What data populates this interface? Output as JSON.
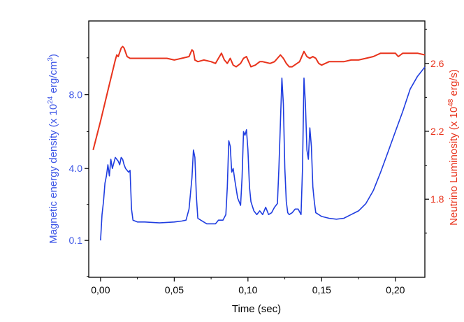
{
  "chart_data": {
    "type": "line",
    "xlabel": "Time (sec)",
    "ylabel_left": {
      "main": "Magnetic energy density (x 10",
      "exp": "24",
      "unit": " erg/cm",
      "unit_exp": "3",
      "close": ")"
    },
    "ylabel_right": {
      "main": "Neutrino Luminosity (x 10",
      "exp": "48",
      "unit": " erg/s)"
    },
    "x_ticks": [
      {
        "value": 0.0,
        "label": "0,00"
      },
      {
        "value": 0.05,
        "label": "0,05"
      },
      {
        "value": 0.1,
        "label": "0,10"
      },
      {
        "value": 0.15,
        "label": "0,15"
      },
      {
        "value": 0.2,
        "label": "0,20"
      }
    ],
    "xlim": [
      -0.008,
      0.22
    ],
    "left_ticks": [
      {
        "value": 0.1,
        "label": "0.1"
      },
      {
        "value": 4.0,
        "label": "4.0"
      },
      {
        "value": 8.0,
        "label": "8.0"
      }
    ],
    "left_ylim": [
      -1.9,
      12.0
    ],
    "right_ticks": [
      {
        "value": 1.8,
        "label": "1.8"
      },
      {
        "value": 2.2,
        "label": "2.2"
      },
      {
        "value": 2.6,
        "label": "2.6"
      }
    ],
    "right_ylim": [
      1.34,
      2.85
    ],
    "series": [
      {
        "axis": "right",
        "color": "#e8331c",
        "x": [
          -0.005,
          0.0,
          0.005,
          0.01,
          0.011,
          0.012,
          0.014,
          0.015,
          0.016,
          0.018,
          0.02,
          0.025,
          0.03,
          0.035,
          0.04,
          0.045,
          0.05,
          0.055,
          0.06,
          0.062,
          0.063,
          0.064,
          0.066,
          0.07,
          0.075,
          0.078,
          0.08,
          0.082,
          0.084,
          0.086,
          0.088,
          0.09,
          0.092,
          0.095,
          0.097,
          0.099,
          0.1,
          0.102,
          0.105,
          0.108,
          0.11,
          0.115,
          0.118,
          0.12,
          0.122,
          0.124,
          0.126,
          0.128,
          0.13,
          0.135,
          0.138,
          0.14,
          0.142,
          0.144,
          0.146,
          0.148,
          0.15,
          0.155,
          0.16,
          0.165,
          0.17,
          0.175,
          0.18,
          0.185,
          0.19,
          0.195,
          0.2,
          0.202,
          0.205,
          0.21,
          0.215,
          0.22
        ],
        "values": [
          2.09,
          2.26,
          2.44,
          2.62,
          2.65,
          2.64,
          2.69,
          2.7,
          2.69,
          2.64,
          2.63,
          2.63,
          2.63,
          2.63,
          2.63,
          2.63,
          2.62,
          2.63,
          2.64,
          2.68,
          2.67,
          2.62,
          2.61,
          2.62,
          2.61,
          2.6,
          2.63,
          2.66,
          2.62,
          2.6,
          2.63,
          2.59,
          2.58,
          2.6,
          2.63,
          2.64,
          2.62,
          2.58,
          2.59,
          2.61,
          2.61,
          2.6,
          2.61,
          2.63,
          2.65,
          2.63,
          2.6,
          2.58,
          2.58,
          2.61,
          2.67,
          2.64,
          2.63,
          2.64,
          2.63,
          2.6,
          2.59,
          2.61,
          2.61,
          2.61,
          2.62,
          2.62,
          2.63,
          2.64,
          2.66,
          2.66,
          2.66,
          2.64,
          2.66,
          2.66,
          2.66,
          2.65
        ]
      },
      {
        "axis": "left",
        "color": "#1f3de0",
        "x": [
          0.0,
          0.001,
          0.002,
          0.003,
          0.004,
          0.005,
          0.006,
          0.007,
          0.008,
          0.009,
          0.01,
          0.012,
          0.013,
          0.014,
          0.015,
          0.016,
          0.017,
          0.018,
          0.019,
          0.02,
          0.021,
          0.022,
          0.025,
          0.03,
          0.04,
          0.05,
          0.055,
          0.058,
          0.06,
          0.062,
          0.063,
          0.064,
          0.065,
          0.066,
          0.068,
          0.07,
          0.072,
          0.075,
          0.078,
          0.08,
          0.083,
          0.085,
          0.086,
          0.087,
          0.088,
          0.089,
          0.09,
          0.091,
          0.093,
          0.095,
          0.096,
          0.097,
          0.098,
          0.099,
          0.1,
          0.101,
          0.102,
          0.104,
          0.106,
          0.108,
          0.11,
          0.112,
          0.114,
          0.116,
          0.118,
          0.12,
          0.121,
          0.122,
          0.123,
          0.124,
          0.125,
          0.126,
          0.127,
          0.128,
          0.13,
          0.132,
          0.134,
          0.136,
          0.137,
          0.138,
          0.139,
          0.14,
          0.141,
          0.142,
          0.143,
          0.144,
          0.145,
          0.146,
          0.148,
          0.15,
          0.155,
          0.16,
          0.165,
          0.17,
          0.175,
          0.18,
          0.185,
          0.19,
          0.195,
          0.2,
          0.205,
          0.21,
          0.215,
          0.22
        ],
        "values": [
          0.1,
          1.5,
          2.2,
          3.2,
          3.6,
          4.2,
          3.6,
          4.5,
          4.0,
          4.3,
          4.6,
          4.4,
          4.2,
          4.6,
          4.5,
          4.2,
          4.0,
          3.9,
          3.8,
          3.9,
          1.8,
          1.2,
          1.1,
          1.1,
          1.05,
          1.1,
          1.15,
          1.2,
          1.8,
          3.5,
          5.0,
          4.6,
          2.5,
          1.3,
          1.2,
          1.1,
          1.0,
          1.0,
          1.0,
          1.2,
          1.2,
          1.5,
          3.0,
          5.5,
          5.2,
          3.8,
          4.0,
          3.4,
          2.4,
          2.0,
          3.5,
          6.0,
          5.8,
          6.1,
          5.0,
          3.0,
          2.2,
          1.7,
          1.5,
          1.7,
          1.5,
          1.9,
          1.5,
          1.6,
          1.9,
          2.1,
          4.0,
          6.5,
          8.9,
          7.5,
          4.0,
          2.2,
          1.6,
          1.5,
          1.6,
          1.8,
          1.8,
          1.5,
          4.0,
          8.9,
          7.5,
          5.0,
          4.5,
          6.2,
          5.2,
          3.0,
          2.2,
          1.6,
          1.5,
          1.4,
          1.3,
          1.25,
          1.3,
          1.5,
          1.7,
          2.1,
          2.8,
          3.8,
          4.9,
          6.0,
          7.1,
          8.3,
          9.0,
          9.5
        ]
      }
    ]
  }
}
